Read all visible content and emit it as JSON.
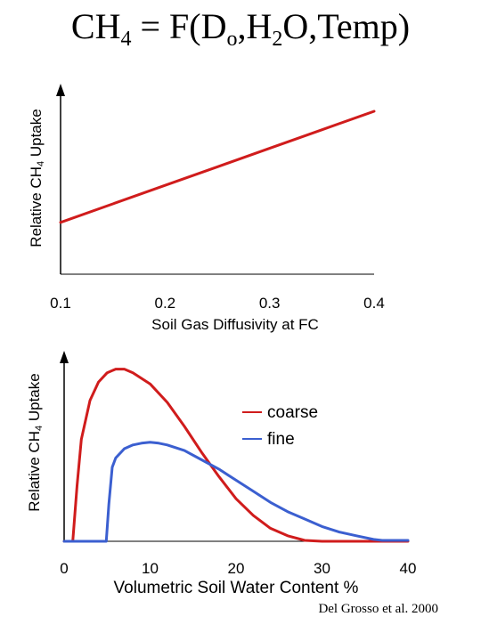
{
  "page": {
    "title_parts": {
      "ch": "CH",
      "sub4": "4",
      "eq": " = F(D",
      "subo": "o",
      "comma_h": ",H",
      "sub2": "2",
      "rest": "O,Temp)"
    },
    "citation": "Del Grosso et al. 2000"
  },
  "chart_data": [
    {
      "type": "line",
      "title": "",
      "xlabel": "Soil Gas Diffusivity at FC",
      "ylabel_parts": {
        "pre": "Relative CH",
        "sub": "4",
        "post": " Uptake"
      },
      "xlim": [
        0.1,
        0.4
      ],
      "ylim": [
        0,
        1
      ],
      "xticks": [
        0.1,
        0.2,
        0.3,
        0.4
      ],
      "xtick_labels": [
        "0.1",
        "0.2",
        "0.3",
        "0.4"
      ],
      "grid": false,
      "color": "#d01c1c",
      "series": [
        {
          "x": [
            0.1,
            0.15,
            0.2,
            0.25,
            0.3,
            0.35,
            0.4
          ],
          "y": [
            0.28,
            0.38,
            0.48,
            0.58,
            0.68,
            0.78,
            0.88
          ]
        }
      ]
    },
    {
      "type": "line",
      "title": "",
      "xlabel": "Volumetric Soil Water Content %",
      "ylabel_parts": {
        "pre": "Relative CH",
        "sub": "4",
        "post": " Uptake"
      },
      "xlim": [
        0,
        40
      ],
      "ylim": [
        0,
        1
      ],
      "xticks": [
        0,
        10,
        20,
        30,
        40
      ],
      "xtick_labels": [
        "0",
        "10",
        "20",
        "30",
        "40"
      ],
      "grid": false,
      "legend_position": "top-right",
      "series": [
        {
          "name": "coarse",
          "color": "#d01c1c",
          "x": [
            0,
            1,
            1.5,
            2,
            3,
            4,
            5,
            6,
            7,
            8,
            10,
            12,
            14,
            16,
            18,
            20,
            22,
            24,
            26,
            28,
            30,
            35,
            40
          ],
          "y": [
            0,
            0,
            0.3,
            0.55,
            0.76,
            0.86,
            0.91,
            0.93,
            0.93,
            0.91,
            0.85,
            0.75,
            0.62,
            0.48,
            0.35,
            0.23,
            0.14,
            0.07,
            0.03,
            0.005,
            0,
            0,
            0
          ]
        },
        {
          "name": "fine",
          "color": "#3b5fd0",
          "x": [
            0,
            4.9,
            5.2,
            5.6,
            6,
            7,
            8,
            9,
            10,
            11,
            12,
            14,
            16,
            18,
            20,
            22,
            24,
            26,
            28,
            30,
            32,
            34,
            36,
            37,
            40
          ],
          "y": [
            0,
            0,
            0.2,
            0.4,
            0.45,
            0.5,
            0.52,
            0.53,
            0.535,
            0.53,
            0.52,
            0.49,
            0.44,
            0.39,
            0.33,
            0.27,
            0.21,
            0.16,
            0.12,
            0.08,
            0.05,
            0.03,
            0.01,
            0.005,
            0.005
          ]
        }
      ]
    }
  ]
}
